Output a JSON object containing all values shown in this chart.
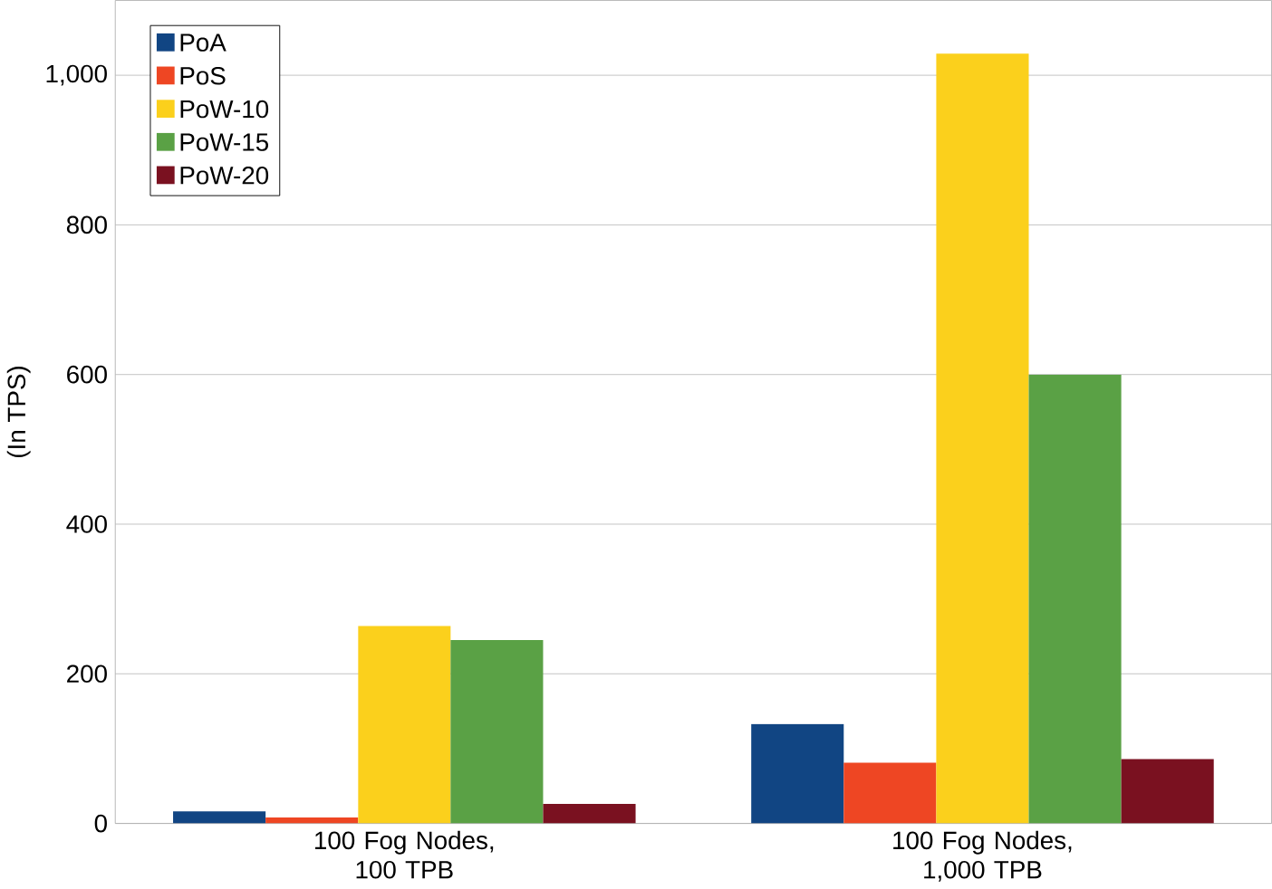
{
  "chart_data": {
    "type": "bar",
    "ylabel": "(In TPS)",
    "categories": [
      "100 Fog Nodes, 100 TPB",
      "100 Fog Nodes, 1,000 TPB"
    ],
    "series": [
      {
        "name": "PoA",
        "color": "#114583",
        "values": [
          16,
          133
        ]
      },
      {
        "name": "PoS",
        "color": "#ee4623",
        "values": [
          8,
          81
        ]
      },
      {
        "name": "PoW-10",
        "color": "#fbd01c",
        "values": [
          264,
          1029
        ]
      },
      {
        "name": "PoW-15",
        "color": "#5aa145",
        "values": [
          245,
          600
        ]
      },
      {
        "name": "PoW-20",
        "color": "#7a1120",
        "values": [
          26,
          86
        ]
      }
    ],
    "ylim": [
      0,
      1100
    ],
    "yticks": [
      0,
      200,
      400,
      600,
      800,
      {
        "value": 1000,
        "label": "1,000"
      }
    ],
    "grid": "y",
    "legend": "top left"
  }
}
